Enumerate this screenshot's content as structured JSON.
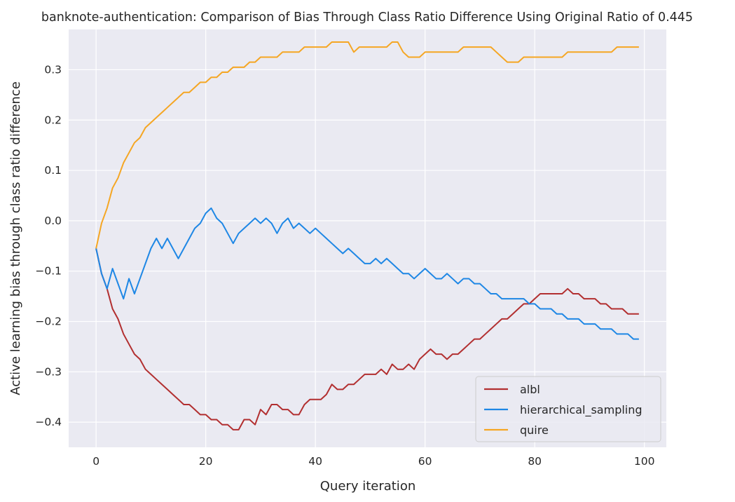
{
  "chart_data": {
    "type": "line",
    "title": "banknote-authentication: Comparison of Bias Through Class Ratio Difference Using Original Ratio of 0.445",
    "xlabel": "Query iteration",
    "ylabel": "Active learning bias through class ratio difference",
    "xlim": [
      -5,
      104
    ],
    "ylim": [
      -0.45,
      0.38
    ],
    "xticks": [
      0,
      20,
      40,
      60,
      80,
      100
    ],
    "yticks": [
      -0.4,
      -0.3,
      -0.2,
      -0.1,
      0.0,
      0.1,
      0.2,
      0.3
    ],
    "xtick_labels": [
      "0",
      "20",
      "40",
      "60",
      "80",
      "100"
    ],
    "ytick_labels": [
      "−0.4",
      "−0.3",
      "−0.2",
      "−0.1",
      "0.0",
      "0.1",
      "0.2",
      "0.3"
    ],
    "grid": true,
    "legend_position": "lower-right",
    "x_start": 0,
    "series": [
      {
        "name": "albl",
        "color": "#b22f30",
        "values": [
          -0.055,
          -0.105,
          -0.135,
          -0.175,
          -0.195,
          -0.225,
          -0.245,
          -0.265,
          -0.275,
          -0.295,
          -0.305,
          -0.315,
          -0.325,
          -0.335,
          -0.345,
          -0.355,
          -0.365,
          -0.365,
          -0.375,
          -0.385,
          -0.385,
          -0.395,
          -0.395,
          -0.405,
          -0.405,
          -0.415,
          -0.415,
          -0.395,
          -0.395,
          -0.405,
          -0.375,
          -0.385,
          -0.365,
          -0.365,
          -0.375,
          -0.375,
          -0.385,
          -0.385,
          -0.365,
          -0.355,
          -0.355,
          -0.355,
          -0.345,
          -0.325,
          -0.335,
          -0.335,
          -0.325,
          -0.325,
          -0.315,
          -0.305,
          -0.305,
          -0.305,
          -0.295,
          -0.305,
          -0.285,
          -0.295,
          -0.295,
          -0.285,
          -0.295,
          -0.275,
          -0.265,
          -0.255,
          -0.265,
          -0.265,
          -0.275,
          -0.265,
          -0.265,
          -0.255,
          -0.245,
          -0.235,
          -0.235,
          -0.225,
          -0.215,
          -0.205,
          -0.195,
          -0.195,
          -0.185,
          -0.175,
          -0.165,
          -0.165,
          -0.155,
          -0.145,
          -0.145,
          -0.145,
          -0.145,
          -0.145,
          -0.135,
          -0.145,
          -0.145,
          -0.155,
          -0.155,
          -0.155,
          -0.165,
          -0.165,
          -0.175,
          -0.175,
          -0.175,
          -0.185,
          -0.185,
          -0.185
        ]
      },
      {
        "name": "hierarchical_sampling",
        "color": "#1e87e5",
        "values": [
          -0.055,
          -0.105,
          -0.135,
          -0.095,
          -0.125,
          -0.155,
          -0.115,
          -0.145,
          -0.115,
          -0.085,
          -0.055,
          -0.035,
          -0.055,
          -0.035,
          -0.055,
          -0.075,
          -0.055,
          -0.035,
          -0.015,
          -0.005,
          0.015,
          0.025,
          0.005,
          -0.005,
          -0.025,
          -0.045,
          -0.025,
          -0.015,
          -0.005,
          0.005,
          -0.005,
          0.005,
          -0.005,
          -0.025,
          -0.005,
          0.005,
          -0.015,
          -0.005,
          -0.015,
          -0.025,
          -0.015,
          -0.025,
          -0.035,
          -0.045,
          -0.055,
          -0.065,
          -0.055,
          -0.065,
          -0.075,
          -0.085,
          -0.085,
          -0.075,
          -0.085,
          -0.075,
          -0.085,
          -0.095,
          -0.105,
          -0.105,
          -0.115,
          -0.105,
          -0.095,
          -0.105,
          -0.115,
          -0.115,
          -0.105,
          -0.115,
          -0.125,
          -0.115,
          -0.115,
          -0.125,
          -0.125,
          -0.135,
          -0.145,
          -0.145,
          -0.155,
          -0.155,
          -0.155,
          -0.155,
          -0.155,
          -0.165,
          -0.165,
          -0.175,
          -0.175,
          -0.175,
          -0.185,
          -0.185,
          -0.195,
          -0.195,
          -0.195,
          -0.205,
          -0.205,
          -0.205,
          -0.215,
          -0.215,
          -0.215,
          -0.225,
          -0.225,
          -0.225,
          -0.235,
          -0.235
        ]
      },
      {
        "name": "quire",
        "color": "#f5a623",
        "values": [
          -0.055,
          -0.005,
          0.025,
          0.065,
          0.085,
          0.115,
          0.135,
          0.155,
          0.165,
          0.185,
          0.195,
          0.205,
          0.215,
          0.225,
          0.235,
          0.245,
          0.255,
          0.255,
          0.265,
          0.275,
          0.275,
          0.285,
          0.285,
          0.295,
          0.295,
          0.305,
          0.305,
          0.305,
          0.315,
          0.315,
          0.325,
          0.325,
          0.325,
          0.325,
          0.335,
          0.335,
          0.335,
          0.335,
          0.345,
          0.345,
          0.345,
          0.345,
          0.345,
          0.355,
          0.355,
          0.355,
          0.355,
          0.335,
          0.345,
          0.345,
          0.345,
          0.345,
          0.345,
          0.345,
          0.355,
          0.355,
          0.335,
          0.325,
          0.325,
          0.325,
          0.335,
          0.335,
          0.335,
          0.335,
          0.335,
          0.335,
          0.335,
          0.345,
          0.345,
          0.345,
          0.345,
          0.345,
          0.345,
          0.335,
          0.325,
          0.315,
          0.315,
          0.315,
          0.325,
          0.325,
          0.325,
          0.325,
          0.325,
          0.325,
          0.325,
          0.325,
          0.335,
          0.335,
          0.335,
          0.335,
          0.335,
          0.335,
          0.335,
          0.335,
          0.335,
          0.345,
          0.345,
          0.345,
          0.345,
          0.345
        ]
      }
    ]
  }
}
